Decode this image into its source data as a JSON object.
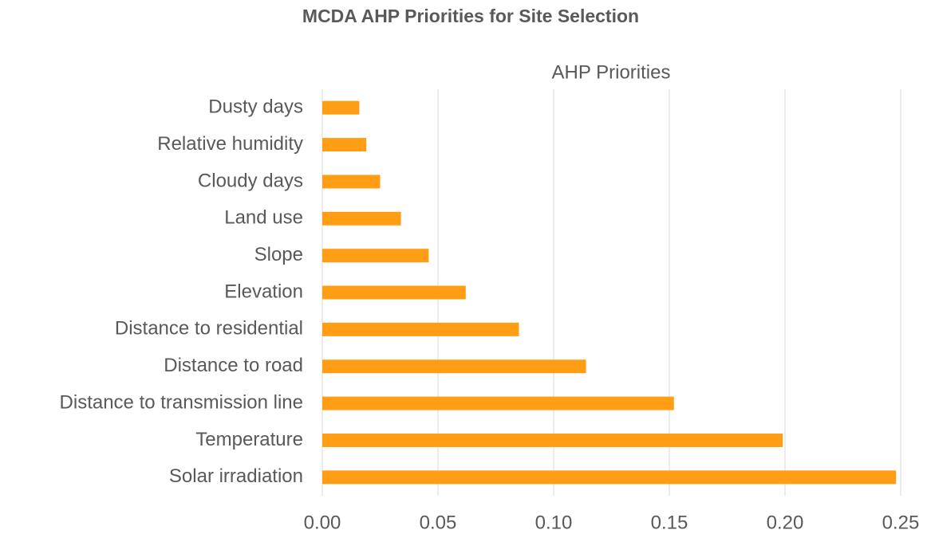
{
  "chart_data": {
    "type": "barh",
    "title": "MCDA AHP Priorities for Site Selection",
    "categories": [
      "Dusty days",
      "Relative humidity",
      "Cloudy days",
      "Land use",
      "Slope",
      "Elevation",
      "Distance to residential",
      "Distance to road",
      "Distance to transmission line",
      "Temperature",
      "Solar irradiation"
    ],
    "series": [
      {
        "name": "AHP Priorities",
        "color": "#ff9e14",
        "values": [
          0.016,
          0.019,
          0.025,
          0.034,
          0.046,
          0.062,
          0.085,
          0.114,
          0.152,
          0.199,
          0.248
        ]
      }
    ],
    "xlim": [
      0,
      0.25
    ],
    "xticks": [
      {
        "value": 0,
        "label": "0.00"
      },
      0.05,
      {
        "value": 0.1,
        "label": "0.10"
      },
      0.15,
      {
        "value": 0.2,
        "label": "0.20"
      },
      0.25
    ],
    "grid": true
  }
}
